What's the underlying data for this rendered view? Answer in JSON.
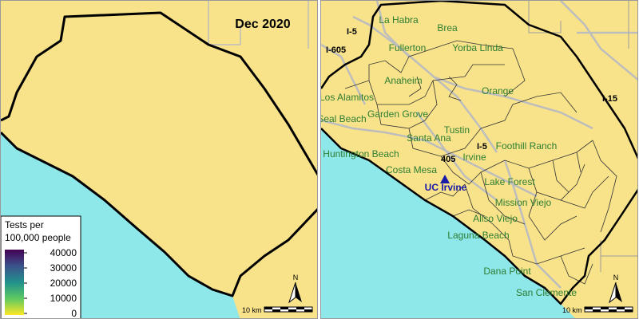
{
  "colors": {
    "land": "#f8e38a",
    "ocean": "#8ee8ea",
    "boundary": "#000000",
    "roads": "#bdbdbd",
    "city_labels": "#2e7d32",
    "uci_marker": "#1a1aa8"
  },
  "left_panel": {
    "date_label": "Dec 2020",
    "legend": {
      "title_line1": "Tests per",
      "title_line2": "100,000 people",
      "ticks": [
        "40000",
        "30000",
        "20000",
        "10000",
        "0"
      ],
      "gradient": [
        "#440154",
        "#3b528b",
        "#21918c",
        "#5ec962",
        "#fde725"
      ]
    },
    "scale_label": "10 km",
    "north_label": "N"
  },
  "right_panel": {
    "cities": [
      "La Habra",
      "Brea",
      "Fullerton",
      "Yorba Linda",
      "Anaheim",
      "Orange",
      "Los Alamitos",
      "Garden Grove",
      "Seal Beach",
      "Tustin",
      "Santa Ana",
      "Huntington Beach",
      "Foothill Ranch",
      "Irvine",
      "Costa Mesa",
      "Lake Forest",
      "Mission Viejo",
      "Aliso Viejo",
      "Laguna Beach",
      "Dana Point",
      "San Clemente"
    ],
    "highways": [
      "I-5",
      "I-605",
      "I-15",
      "405",
      "I-5"
    ],
    "marker_label": "UC Irvine",
    "marker_icon": "triangle-icon",
    "scale_label": "10 km",
    "north_label": "N"
  }
}
